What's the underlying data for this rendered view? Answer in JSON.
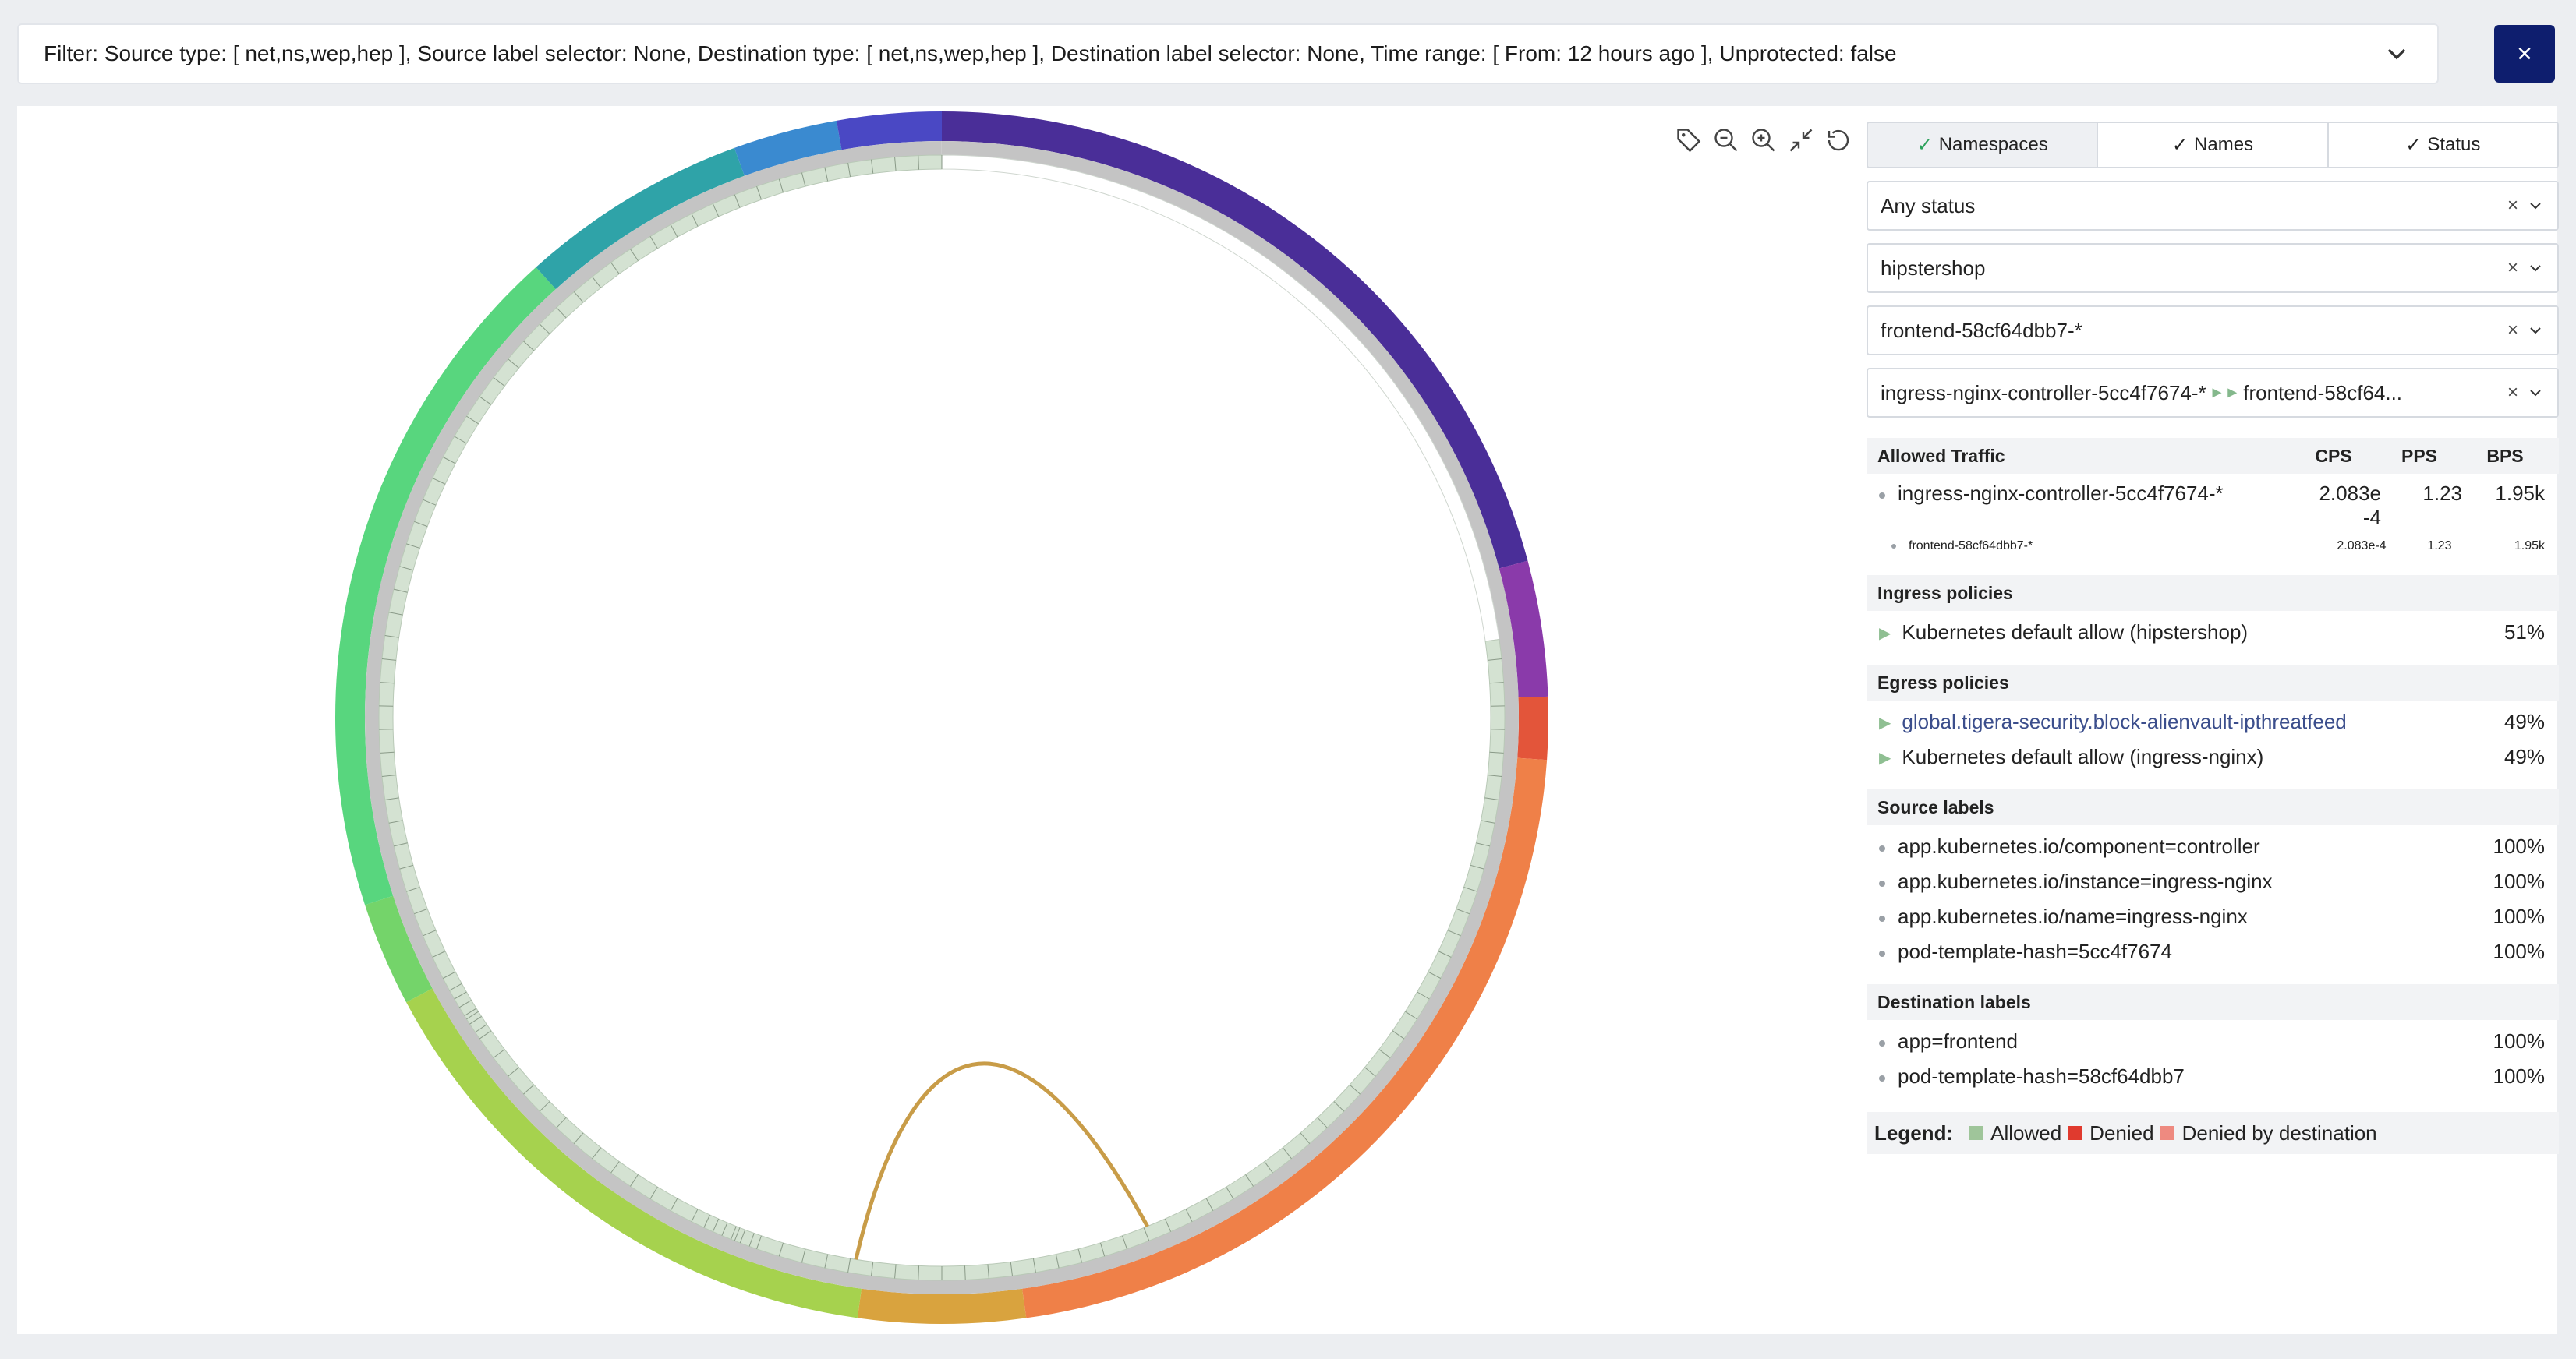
{
  "filter": {
    "text": "Filter: Source type: [ net,ns,wep,hep ], Source label selector: None, Destination type: [ net,ns,wep,hep ], Destination label selector: None, Time range: [ From: 12 hours ago ], Unprotected: false",
    "close": "×"
  },
  "toolbar": {
    "icons": [
      "tag-icon",
      "zoom-out-icon",
      "zoom-in-icon",
      "collapse-icon",
      "reset-icon"
    ]
  },
  "tabs": {
    "check": "✓",
    "namespaces": "Namespaces",
    "names": "Names",
    "status": "Status"
  },
  "selects": {
    "status": "Any status",
    "namespace": "hipstershop",
    "endpoint": "frontend-58cf64dbb7-*",
    "flow_source": "ingress-nginx-controller-5cc4f7674-*",
    "flow_arrow": "►►",
    "flow_dest": "frontend-58cf64...",
    "clear": "×"
  },
  "traffic": {
    "heading": "Allowed Traffic",
    "cols": [
      "CPS",
      "PPS",
      "BPS"
    ],
    "rows": [
      {
        "name": "ingress-nginx-controller-5cc4f7674-*",
        "cps": "2.083e-4",
        "pps": "1.23",
        "bps": "1.95k"
      }
    ],
    "sub_rows": [
      {
        "name": "frontend-58cf64dbb7-*",
        "cps": "2.083e-4",
        "pps": "1.23",
        "bps": "1.95k"
      }
    ]
  },
  "ingress": {
    "heading": "Ingress policies",
    "items": [
      {
        "name": "Kubernetes default allow (hipstershop)",
        "pct": "51%"
      }
    ]
  },
  "egress": {
    "heading": "Egress policies",
    "items": [
      {
        "name": "global.tigera-security.block-alienvault-ipthreatfeed",
        "pct": "49%"
      },
      {
        "name": "Kubernetes default allow (ingress-nginx)",
        "pct": "49%"
      }
    ]
  },
  "source_labels": {
    "heading": "Source labels",
    "items": [
      {
        "name": "app.kubernetes.io/component=controller",
        "pct": "100%"
      },
      {
        "name": "app.kubernetes.io/instance=ingress-nginx",
        "pct": "100%"
      },
      {
        "name": "app.kubernetes.io/name=ingress-nginx",
        "pct": "100%"
      },
      {
        "name": "pod-template-hash=5cc4f7674",
        "pct": "100%"
      }
    ]
  },
  "dest_labels": {
    "heading": "Destination labels",
    "items": [
      {
        "name": "app=frontend",
        "pct": "100%"
      },
      {
        "name": "pod-template-hash=58cf64dbb7",
        "pct": "100%"
      }
    ]
  },
  "legend": {
    "title": "Legend:",
    "items": [
      {
        "label": "Allowed",
        "color": "#9fc59a"
      },
      {
        "label": "Denied",
        "color": "#e03a2e"
      },
      {
        "label": "Denied by destination",
        "color": "#ee8a80"
      }
    ]
  },
  "graph": {
    "outer_arcs": [
      {
        "from": 0,
        "to": 75,
        "color": "#4a2e98"
      },
      {
        "from": 75,
        "to": 88,
        "color": "#8a3aaa"
      },
      {
        "from": 88,
        "to": 94,
        "color": "#e3553a"
      },
      {
        "from": 94,
        "to": 172,
        "color": "#ef8048"
      },
      {
        "from": 172,
        "to": 188,
        "color": "#d9a33e"
      },
      {
        "from": 188,
        "to": 242,
        "color": "#a6d24e"
      },
      {
        "from": 242,
        "to": 252,
        "color": "#74d46a"
      },
      {
        "from": 252,
        "to": 318,
        "color": "#58d67e"
      },
      {
        "from": 318,
        "to": 340,
        "color": "#2fa3a8"
      },
      {
        "from": 340,
        "to": 350,
        "color": "#3a8ad0"
      },
      {
        "from": 350,
        "to": 360,
        "color": "#4a48c4"
      }
    ],
    "chord_color": "#c89c48"
  }
}
